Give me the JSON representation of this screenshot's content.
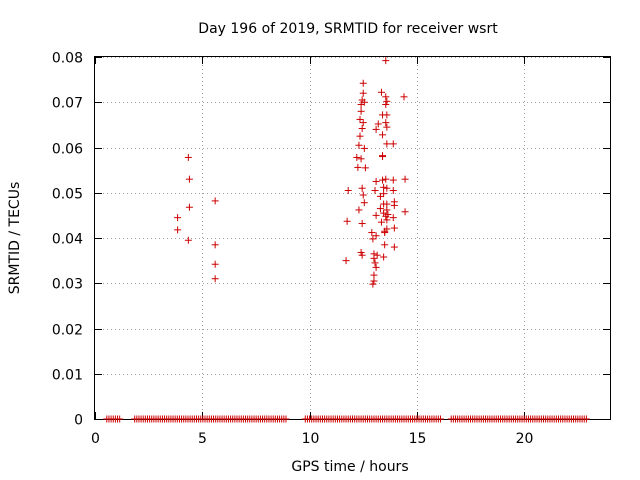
{
  "chart_data": {
    "type": "scatter",
    "title": "Day 196 of 2019, SRMTID for receiver wsrt",
    "xlabel": "GPS time / hours",
    "ylabel": "SRMTID / TECUs",
    "xlim": [
      0,
      24
    ],
    "ylim": [
      0,
      0.08
    ],
    "grid": true,
    "marker": "+",
    "marker_color": "#cc0000",
    "x_ticks": [
      0,
      5,
      10,
      15,
      20
    ],
    "x_tick_labels": [
      "0",
      "5",
      "10",
      "15",
      "20"
    ],
    "y_ticks": [
      0,
      0.01,
      0.02,
      0.03,
      0.04,
      0.05,
      0.06,
      0.07,
      0.08
    ],
    "y_tick_labels": [
      "0",
      "0.01",
      "0.02",
      "0.03",
      "0.04",
      "0.05",
      "0.06",
      "0.07",
      "0.08"
    ],
    "series": [
      {
        "points": [
          [
            3.85,
            0.0445
          ],
          [
            3.85,
            0.0418
          ],
          [
            4.35,
            0.0578
          ],
          [
            4.4,
            0.053
          ],
          [
            4.4,
            0.0468
          ],
          [
            4.35,
            0.0395
          ],
          [
            5.6,
            0.0482
          ],
          [
            5.6,
            0.0385
          ],
          [
            5.6,
            0.0342
          ],
          [
            5.6,
            0.031
          ],
          [
            11.7,
            0.035
          ],
          [
            11.75,
            0.0437
          ],
          [
            11.8,
            0.0505
          ],
          [
            12.2,
            0.0578
          ],
          [
            12.25,
            0.0556
          ],
          [
            12.3,
            0.0462
          ],
          [
            12.3,
            0.0605
          ],
          [
            12.35,
            0.0625
          ],
          [
            12.35,
            0.0662
          ],
          [
            12.4,
            0.068
          ],
          [
            12.4,
            0.0695
          ],
          [
            12.45,
            0.0705
          ],
          [
            12.5,
            0.072
          ],
          [
            12.5,
            0.0742
          ],
          [
            12.45,
            0.0642
          ],
          [
            12.4,
            0.0575
          ],
          [
            12.45,
            0.051
          ],
          [
            12.5,
            0.0495
          ],
          [
            12.55,
            0.0478
          ],
          [
            12.45,
            0.0432
          ],
          [
            12.4,
            0.0368
          ],
          [
            12.45,
            0.0362
          ],
          [
            12.55,
            0.07
          ],
          [
            12.5,
            0.0655
          ],
          [
            12.55,
            0.0598
          ],
          [
            12.6,
            0.0555
          ],
          [
            12.9,
            0.0412
          ],
          [
            12.95,
            0.0398
          ],
          [
            13.0,
            0.0365
          ],
          [
            13.0,
            0.0355
          ],
          [
            13.05,
            0.0345
          ],
          [
            13.1,
            0.0335
          ],
          [
            13.0,
            0.0318
          ],
          [
            12.95,
            0.0298
          ],
          [
            13.0,
            0.0305
          ],
          [
            13.05,
            0.0505
          ],
          [
            13.1,
            0.0525
          ],
          [
            13.1,
            0.045
          ],
          [
            13.1,
            0.0405
          ],
          [
            13.15,
            0.0362
          ],
          [
            13.1,
            0.064
          ],
          [
            13.2,
            0.0652
          ],
          [
            13.3,
            0.0492
          ],
          [
            13.3,
            0.0465
          ],
          [
            13.35,
            0.0435
          ],
          [
            13.35,
            0.0722
          ],
          [
            13.4,
            0.0672
          ],
          [
            13.4,
            0.0628
          ],
          [
            13.4,
            0.0582
          ],
          [
            13.4,
            0.0528
          ],
          [
            13.45,
            0.0512
          ],
          [
            13.45,
            0.0498
          ],
          [
            13.45,
            0.0475
          ],
          [
            13.45,
            0.0455
          ],
          [
            13.5,
            0.0415
          ],
          [
            13.5,
            0.0412
          ],
          [
            13.5,
            0.0385
          ],
          [
            13.45,
            0.0358
          ],
          [
            13.55,
            0.0792
          ],
          [
            13.55,
            0.0712
          ],
          [
            13.6,
            0.0702
          ],
          [
            13.55,
            0.0695
          ],
          [
            13.6,
            0.0672
          ],
          [
            13.55,
            0.0655
          ],
          [
            13.6,
            0.0645
          ],
          [
            13.6,
            0.0608
          ],
          [
            13.55,
            0.053
          ],
          [
            13.6,
            0.051
          ],
          [
            13.6,
            0.0475
          ],
          [
            13.6,
            0.0462
          ],
          [
            13.55,
            0.0448
          ],
          [
            13.65,
            0.0452
          ],
          [
            13.6,
            0.044
          ],
          [
            13.6,
            0.042
          ],
          [
            13.4,
            0.058
          ],
          [
            13.9,
            0.0608
          ],
          [
            13.9,
            0.0528
          ],
          [
            13.9,
            0.0505
          ],
          [
            13.95,
            0.048
          ],
          [
            13.95,
            0.0472
          ],
          [
            13.9,
            0.0445
          ],
          [
            13.95,
            0.0422
          ],
          [
            13.95,
            0.038
          ],
          [
            14.4,
            0.0712
          ],
          [
            14.45,
            0.053
          ],
          [
            14.45,
            0.0458
          ]
        ]
      }
    ],
    "zero_band": {
      "y": 0,
      "x_segments": [
        [
          0.55,
          1.15
        ],
        [
          1.85,
          8.9
        ],
        [
          9.8,
          16.1
        ],
        [
          16.6,
          22.9
        ]
      ]
    }
  }
}
